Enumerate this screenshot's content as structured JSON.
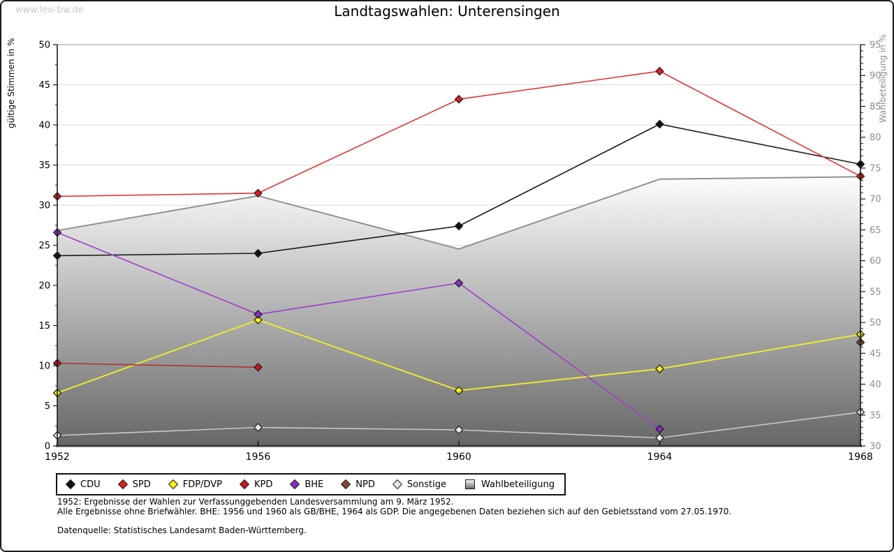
{
  "watermark": "www.leo-bw.de",
  "title": "Landtagswahlen: Unterensingen",
  "chart_data": {
    "type": "line",
    "title": "Landtagswahlen: Unterensingen",
    "x": [
      1952,
      1956,
      1960,
      1964,
      1968
    ],
    "x_ticklabels": [
      "1952",
      "1956",
      "1960",
      "1964",
      "1968"
    ],
    "left_axis": {
      "label": "gültige Stimmen in %",
      "min": 0,
      "max": 50,
      "tick_step": 5,
      "ticks": [
        0,
        5,
        10,
        15,
        20,
        25,
        30,
        35,
        40,
        45,
        50
      ]
    },
    "right_axis": {
      "label": "Wahlbeteiligung in %",
      "min": 30,
      "max": 95,
      "tick_step": 5,
      "ticks": [
        30,
        35,
        40,
        45,
        50,
        55,
        60,
        65,
        70,
        75,
        80,
        85,
        90,
        95
      ]
    },
    "grid": true,
    "series": [
      {
        "name": "CDU",
        "color": "#1a1a1a",
        "marker_fill": "#111111",
        "axis": "left",
        "values": [
          23.7,
          24.0,
          27.4,
          40.1,
          35.1
        ]
      },
      {
        "name": "SPD",
        "color": "#e03333",
        "marker_fill": "#d81e28",
        "axis": "left",
        "values": [
          31.1,
          31.5,
          43.2,
          46.7,
          33.6
        ]
      },
      {
        "name": "FDP/DVP",
        "color": "#ece92f",
        "marker_fill": "#f6ef1c",
        "axis": "left",
        "values": [
          6.6,
          15.7,
          6.9,
          9.6,
          13.9
        ]
      },
      {
        "name": "KPD",
        "color": "#b03030",
        "marker_fill": "#c01822",
        "axis": "left",
        "values": [
          10.3,
          9.8,
          null,
          null,
          null
        ]
      },
      {
        "name": "BHE",
        "color": "#9b40c8",
        "marker_fill": "#8b2fc0",
        "axis": "left",
        "values": [
          26.6,
          16.4,
          20.3,
          2.1,
          null
        ]
      },
      {
        "name": "NPD",
        "color": "#7a4930",
        "marker_fill": "#7a4930",
        "axis": "left",
        "values": [
          null,
          null,
          null,
          null,
          12.9
        ]
      },
      {
        "name": "Sonstige",
        "color": "#c8c8c8",
        "marker_fill": "#e8e8e8",
        "axis": "left",
        "values": [
          1.3,
          2.3,
          2.0,
          1.0,
          4.2
        ]
      }
    ],
    "area_series": {
      "name": "Wahlbeteiligung",
      "axis": "right",
      "values": [
        64.9,
        70.5,
        61.9,
        73.2,
        73.6
      ],
      "edge_color": "#909090",
      "gradient_top": "#fdfdfd",
      "gradient_bottom": "#666666"
    },
    "legend_position": "bottom"
  },
  "legend": {
    "items": [
      {
        "label": "CDU",
        "marker": "diamond",
        "color": "#111111"
      },
      {
        "label": "SPD",
        "marker": "diamond",
        "color": "#d81e28"
      },
      {
        "label": "FDP/DVP",
        "marker": "diamond",
        "color": "#f6ef1c"
      },
      {
        "label": "KPD",
        "marker": "diamond",
        "color": "#c01822"
      },
      {
        "label": "BHE",
        "marker": "diamond",
        "color": "#8b2fc0"
      },
      {
        "label": "NPD",
        "marker": "diamond",
        "color": "#7a4930"
      },
      {
        "label": "Sonstige",
        "marker": "diamond",
        "color": "#e8e8e8"
      },
      {
        "label": "Wahlbeteiligung",
        "marker": "gradient-square",
        "color": "#999999"
      }
    ]
  },
  "footnotes": {
    "line1": "1952: Ergebnisse der Wahlen zur Verfassunggebenden Landesversammlung am 9. März 1952.",
    "line2": "Alle Ergebnisse ohne Briefwähler. BHE: 1956 und 1960 als GB/BHE, 1964 als GDP. Die angegebenen Daten beziehen sich auf den Gebietsstand vom 27.05.1970.",
    "source": "Datenquelle: Statistisches Landesamt Baden-Württemberg."
  }
}
